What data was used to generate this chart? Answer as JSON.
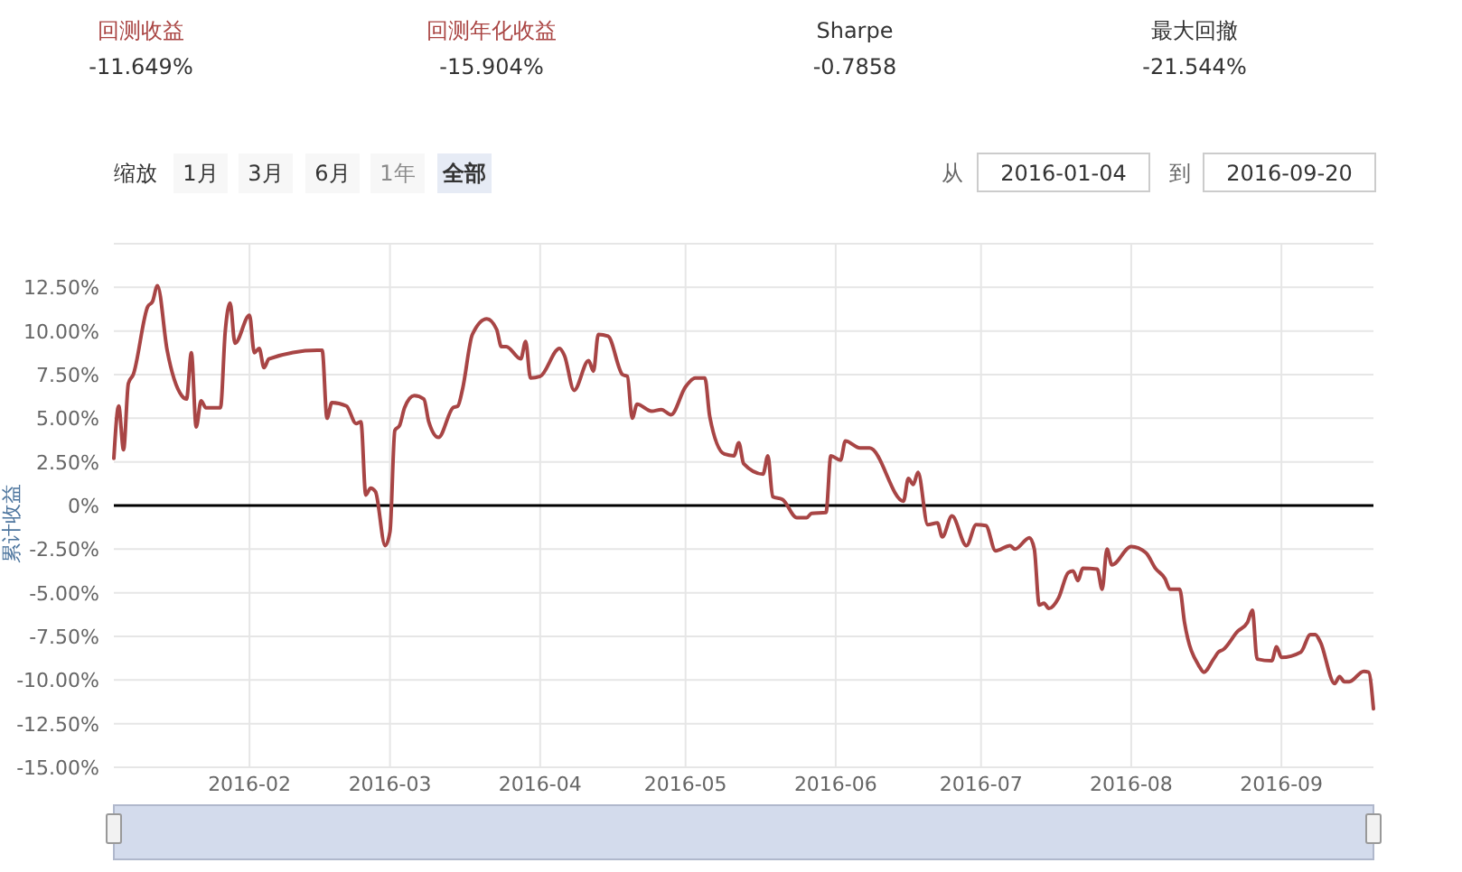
{
  "chart_data": {
    "type": "line",
    "ylabel": "累计收益",
    "annotations": [
      "回测收益",
      "-11.649%",
      "回测年化收益",
      "-15.904%",
      "Sharpe",
      "-0.7858",
      "最大回撤",
      "-21.544%",
      "缩放",
      "1月",
      "3月",
      "6月",
      "1年",
      "全部",
      "从",
      "2016-01-04",
      "到",
      "2016-09-20"
    ],
    "xlim": [
      "2016-01-04",
      "2016-09-20"
    ],
    "xticks": [
      "2016-02",
      "2016-03",
      "2016-04",
      "2016-05",
      "2016-06",
      "2016-07",
      "2016-08",
      "2016-09"
    ],
    "ylim": [
      -15,
      15
    ],
    "yticks": [
      {
        "value": -15,
        "label": "-15.00%"
      },
      {
        "value": -12.5,
        "label": "-12.50%"
      },
      {
        "value": -10,
        "label": "-10.00%"
      },
      {
        "value": -7.5,
        "label": "-7.50%"
      },
      {
        "value": -5,
        "label": "-5.00%"
      },
      {
        "value": -2.5,
        "label": "-2.50%"
      },
      {
        "value": 0,
        "label": "0%"
      },
      {
        "value": 2.5,
        "label": "2.50%"
      },
      {
        "value": 5,
        "label": "5.00%"
      },
      {
        "value": 7.5,
        "label": "7.50%"
      },
      {
        "value": 10,
        "label": "10.00%"
      },
      {
        "value": 12.5,
        "label": "12.50%"
      },
      {
        "value": 15,
        "label": null
      }
    ],
    "grid": true,
    "marker": "none",
    "line_style": "solid",
    "ref_lines": [
      {
        "axis": "y",
        "value": 0,
        "label": null,
        "color": "#000000"
      }
    ],
    "series": [
      {
        "color": "#a84545",
        "x": [
          "2016-01-04",
          "2016-01-05",
          "2016-01-06",
          "2016-01-07",
          "2016-01-08",
          "2016-01-11",
          "2016-01-12",
          "2016-01-13",
          "2016-01-15",
          "2016-01-18",
          "2016-01-19",
          "2016-01-20",
          "2016-01-21",
          "2016-01-22",
          "2016-01-23",
          "2016-01-26",
          "2016-01-27",
          "2016-01-28",
          "2016-01-29",
          "2016-02-01",
          "2016-02-02",
          "2016-02-03",
          "2016-02-04",
          "2016-02-05",
          "2016-02-15",
          "2016-02-16",
          "2016-02-17",
          "2016-02-18",
          "2016-02-21",
          "2016-02-23",
          "2016-02-24",
          "2016-02-25",
          "2016-02-26",
          "2016-02-27",
          "2016-02-29",
          "2016-03-01",
          "2016-03-02",
          "2016-03-03",
          "2016-03-04",
          "2016-03-06",
          "2016-03-08",
          "2016-03-09",
          "2016-03-11",
          "2016-03-14",
          "2016-03-15",
          "2016-03-16",
          "2016-03-18",
          "2016-03-21",
          "2016-03-23",
          "2016-03-24",
          "2016-03-25",
          "2016-03-28",
          "2016-03-29",
          "2016-03-30",
          "2016-04-01",
          "2016-04-05",
          "2016-04-06",
          "2016-04-08",
          "2016-04-11",
          "2016-04-12",
          "2016-04-13",
          "2016-04-15",
          "2016-04-18",
          "2016-04-19",
          "2016-04-20",
          "2016-04-21",
          "2016-04-24",
          "2016-04-26",
          "2016-04-28",
          "2016-05-01",
          "2016-05-03",
          "2016-05-05",
          "2016-05-06",
          "2016-05-09",
          "2016-05-11",
          "2016-05-12",
          "2016-05-13",
          "2016-05-17",
          "2016-05-18",
          "2016-05-19",
          "2016-05-21",
          "2016-05-24",
          "2016-05-26",
          "2016-05-27",
          "2016-05-30",
          "2016-05-31",
          "2016-06-02",
          "2016-06-03",
          "2016-06-06",
          "2016-06-08",
          "2016-06-15",
          "2016-06-16",
          "2016-06-17",
          "2016-06-18",
          "2016-06-20",
          "2016-06-22",
          "2016-06-23",
          "2016-06-25",
          "2016-06-28",
          "2016-06-30",
          "2016-07-02",
          "2016-07-04",
          "2016-07-07",
          "2016-07-08",
          "2016-07-11",
          "2016-07-12",
          "2016-07-13",
          "2016-07-14",
          "2016-07-15",
          "2016-07-17",
          "2016-07-19",
          "2016-07-20",
          "2016-07-21",
          "2016-07-22",
          "2016-07-25",
          "2016-07-26",
          "2016-07-27",
          "2016-07-28",
          "2016-08-01",
          "2016-08-04",
          "2016-08-06",
          "2016-08-08",
          "2016-08-09",
          "2016-08-11",
          "2016-08-12",
          "2016-08-15",
          "2016-08-16",
          "2016-08-18",
          "2016-08-19",
          "2016-08-20",
          "2016-08-23",
          "2016-08-25",
          "2016-08-26",
          "2016-08-27",
          "2016-08-30",
          "2016-08-31",
          "2016-09-01",
          "2016-09-05",
          "2016-09-07",
          "2016-09-08",
          "2016-09-09",
          "2016-09-12",
          "2016-09-13",
          "2016-09-14",
          "2016-09-15",
          "2016-09-18",
          "2016-09-19",
          "2016-09-20"
        ],
        "values": [
          2.7,
          5.7,
          3.2,
          7.0,
          7.5,
          11.4,
          11.7,
          12.6,
          8.9,
          6.3,
          6.1,
          8.75,
          4.5,
          6.0,
          5.6,
          5.6,
          10.0,
          11.6,
          9.3,
          10.9,
          8.75,
          9.0,
          7.9,
          8.4,
          8.9,
          8.9,
          5.0,
          5.9,
          5.7,
          4.7,
          4.8,
          0.6,
          1.0,
          0.8,
          -2.3,
          -1.5,
          4.3,
          4.6,
          5.6,
          6.3,
          6.1,
          4.8,
          3.9,
          5.6,
          5.7,
          6.7,
          9.8,
          10.7,
          10.1,
          9.1,
          9.1,
          8.4,
          9.4,
          7.3,
          7.4,
          9.0,
          8.6,
          6.6,
          8.3,
          7.7,
          9.8,
          9.7,
          7.5,
          7.4,
          5.0,
          5.8,
          5.4,
          5.5,
          5.2,
          6.8,
          7.3,
          7.3,
          5.1,
          2.95,
          2.85,
          3.6,
          2.4,
          1.8,
          2.85,
          0.5,
          0.35,
          -0.7,
          -0.7,
          -0.45,
          -0.4,
          2.85,
          2.6,
          3.7,
          3.3,
          3.3,
          0.25,
          1.55,
          1.2,
          1.9,
          -1.1,
          -1.0,
          -1.8,
          -0.6,
          -2.3,
          -1.1,
          -1.15,
          -2.6,
          -2.3,
          -2.5,
          -1.85,
          -2.5,
          -5.7,
          -5.6,
          -5.9,
          -5.3,
          -3.85,
          -3.75,
          -4.3,
          -3.6,
          -3.65,
          -4.8,
          -2.5,
          -3.4,
          -2.35,
          -2.7,
          -3.6,
          -4.2,
          -4.8,
          -4.8,
          -6.7,
          -9.2,
          -9.55,
          -8.8,
          -8.4,
          -8.25,
          -7.2,
          -6.7,
          -6.0,
          -8.8,
          -8.9,
          -8.1,
          -8.7,
          -8.4,
          -7.4,
          -7.4,
          -7.8,
          -10.2,
          -9.8,
          -10.1,
          -10.1,
          -9.5,
          -9.55,
          -11.65
        ]
      }
    ]
  }
}
